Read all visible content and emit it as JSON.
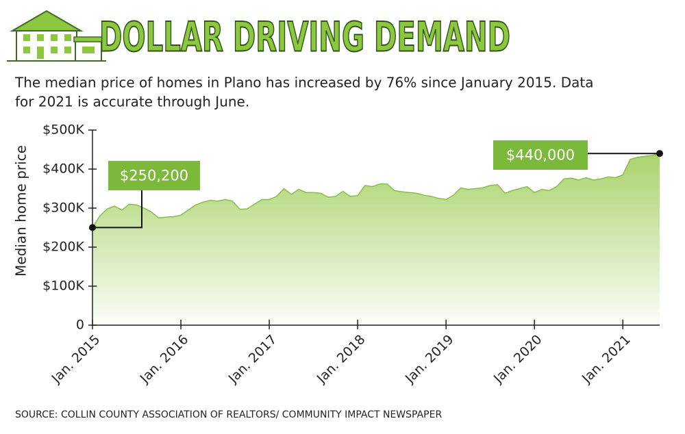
{
  "chart_data": {
    "type": "area",
    "title": "DOLLAR DRIVING DEMAND",
    "subtitle": [
      "The median price of homes in Plano has increased by 76% since January 2015. Data",
      "for 2021 is accurate through June."
    ],
    "y_label": "Median home price",
    "source": "SOURCE: COLLIN COUNTY ASSOCIATION OF REALTORS/ COMMUNITY IMPACT NEWSPAPER",
    "color": "#8dc63f",
    "categories": [
      "Jan. 2015",
      null,
      null,
      null,
      null,
      null,
      null,
      null,
      null,
      null,
      null,
      null,
      "Jan. 2016",
      null,
      null,
      null,
      null,
      null,
      null,
      null,
      null,
      null,
      null,
      null,
      "Jan. 2017",
      null,
      null,
      null,
      null,
      null,
      null,
      null,
      null,
      null,
      null,
      null,
      "Jan. 2018",
      null,
      null,
      null,
      null,
      null,
      null,
      null,
      null,
      null,
      null,
      null,
      "Jan. 2019",
      null,
      null,
      null,
      null,
      null,
      null,
      null,
      null,
      null,
      null,
      null,
      "Jan. 2020",
      null,
      null,
      null,
      null,
      null,
      null,
      null,
      null,
      null,
      null,
      null,
      "Jan. 2021",
      null,
      null,
      null,
      null,
      null
    ],
    "values": [
      250200,
      280000,
      298000,
      305000,
      295000,
      310000,
      308000,
      300000,
      290000,
      275000,
      277000,
      278000,
      282000,
      295000,
      308000,
      315000,
      320000,
      318000,
      322000,
      318000,
      297000,
      298000,
      310000,
      322000,
      322000,
      330000,
      350000,
      335000,
      348000,
      340000,
      340000,
      338000,
      328000,
      330000,
      343000,
      330000,
      332000,
      358000,
      355000,
      362000,
      362000,
      345000,
      342000,
      340000,
      338000,
      333000,
      330000,
      325000,
      322000,
      333000,
      352000,
      348000,
      350000,
      352000,
      358000,
      360000,
      338000,
      345000,
      350000,
      355000,
      340000,
      348000,
      345000,
      355000,
      375000,
      377000,
      372000,
      378000,
      372000,
      375000,
      380000,
      378000,
      385000,
      425000,
      430000,
      433000,
      435000,
      440000
    ],
    "value_labels": [
      "$250,200",
      null,
      null,
      null,
      null,
      null,
      null,
      null,
      null,
      null,
      null,
      null,
      null,
      null,
      null,
      null,
      null,
      null,
      null,
      null,
      null,
      null,
      null,
      null,
      null,
      null,
      null,
      null,
      null,
      null,
      null,
      null,
      null,
      null,
      null,
      null,
      null,
      null,
      null,
      null,
      null,
      null,
      null,
      null,
      null,
      null,
      null,
      null,
      null,
      null,
      null,
      null,
      null,
      null,
      null,
      null,
      null,
      null,
      null,
      null,
      null,
      null,
      null,
      null,
      null,
      null,
      null,
      null,
      null,
      null,
      null,
      null,
      null,
      null,
      null,
      null,
      null,
      "$440,000"
    ],
    "ylim": [
      0,
      500000
    ],
    "yticks": [
      0,
      {
        "value": 100000,
        "label": "$100K"
      },
      {
        "value": 200000,
        "label": "$200K"
      },
      {
        "value": 300000,
        "label": "$300K"
      },
      {
        "value": 400000,
        "label": "$400K"
      },
      {
        "value": 500000,
        "label": "$500K"
      }
    ]
  }
}
